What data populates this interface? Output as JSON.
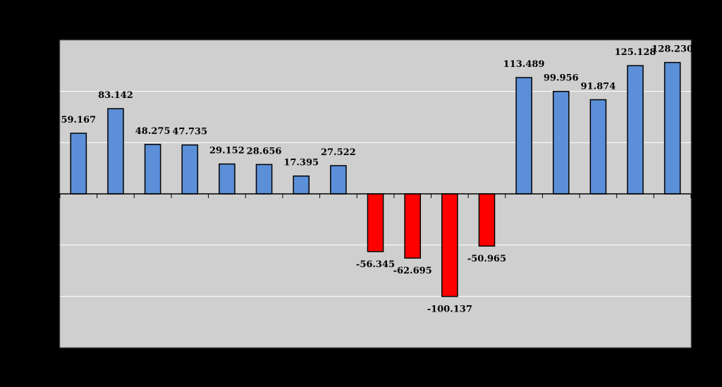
{
  "chart_data": {
    "type": "bar",
    "categories": [
      "",
      "",
      "",
      "",
      "",
      "",
      "",
      "",
      "",
      "",
      "",
      "",
      "",
      "",
      "",
      "",
      ""
    ],
    "values": [
      59.167,
      83.142,
      48.275,
      47.735,
      29.152,
      28.656,
      17.395,
      27.522,
      -56.345,
      -62.695,
      -100.137,
      -50.965,
      113.489,
      99.956,
      91.874,
      125.128,
      128.23
    ],
    "value_labels": [
      "59.167",
      "83.142",
      "48.275",
      "47.735",
      "29.152",
      "28.656",
      "17.395",
      "27.522",
      "-56.345",
      "-62.695",
      "-100.137",
      "-50.965",
      "113.489",
      "99.956",
      "91.874",
      "125.128",
      "128.230"
    ],
    "title": "",
    "xlabel": "",
    "ylabel": "",
    "ylim": [
      -150,
      150
    ],
    "gridlines": true,
    "y_tick_step": 50,
    "legend": "none",
    "colors": {
      "positive": "#5b8fd8",
      "negative": "#ff0000",
      "plot_background": "#cfcfcf",
      "page_background": "#000000",
      "gridline": "#ffffff"
    }
  }
}
